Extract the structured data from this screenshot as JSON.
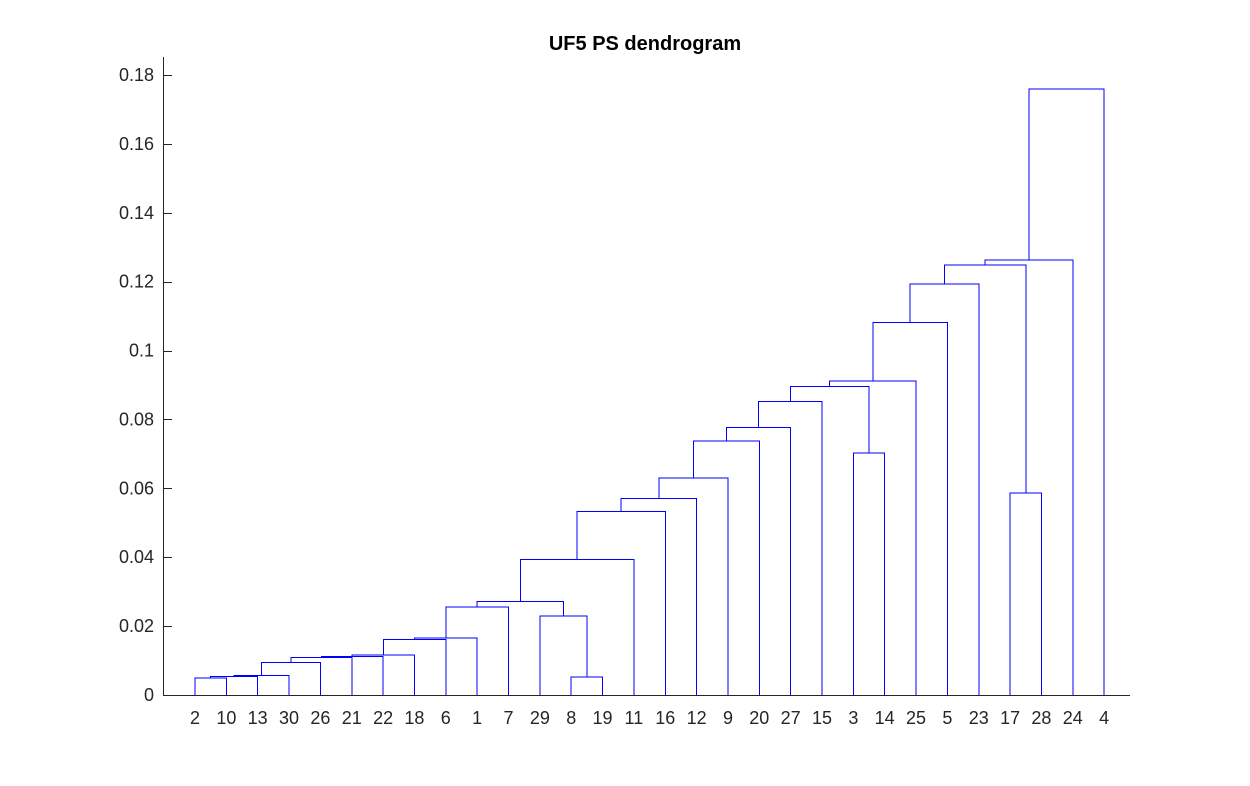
{
  "chart_data": {
    "type": "dendrogram",
    "title": "UF5 PS dendrogram",
    "xlabel": "",
    "ylabel": "",
    "ylim": [
      0,
      0.18
    ],
    "yticks": [
      0,
      0.02,
      0.04,
      0.06,
      0.08,
      0.1,
      0.12,
      0.14,
      0.16,
      0.18
    ],
    "ytick_labels": [
      "0",
      "0.02",
      "0.04",
      "0.06",
      "0.08",
      "0.1",
      "0.12",
      "0.14",
      "0.16",
      "0.18"
    ],
    "leaf_order": [
      "2",
      "10",
      "13",
      "30",
      "26",
      "21",
      "22",
      "18",
      "6",
      "1",
      "7",
      "29",
      "8",
      "19",
      "11",
      "16",
      "12",
      "9",
      "20",
      "27",
      "15",
      "3",
      "14",
      "25",
      "5",
      "23",
      "17",
      "28",
      "24",
      "4"
    ],
    "merges": [
      {
        "left": "2",
        "right": "10",
        "height": 0.0049
      },
      {
        "left": "8",
        "right": "19",
        "height": 0.0052
      },
      {
        "left": "c1",
        "right": "13",
        "height": 0.0054
      },
      {
        "left": "c3",
        "right": "30",
        "height": 0.0056
      },
      {
        "left": "c4",
        "right": "26",
        "height": 0.0094
      },
      {
        "left": "c5",
        "right": "21",
        "height": 0.0109
      },
      {
        "left": "c6",
        "right": "22",
        "height": 0.0112
      },
      {
        "left": "c7",
        "right": "18",
        "height": 0.0116
      },
      {
        "left": "c8",
        "right": "6",
        "height": 0.0161
      },
      {
        "left": "c9",
        "right": "1",
        "height": 0.0166
      },
      {
        "left": "29",
        "right": "c2",
        "height": 0.0229
      },
      {
        "left": "c10",
        "right": "7",
        "height": 0.0256
      },
      {
        "left": "c12",
        "right": "c11",
        "height": 0.0272
      },
      {
        "left": "c13",
        "right": "11",
        "height": 0.0393
      },
      {
        "left": "c14",
        "right": "16",
        "height": 0.0533
      },
      {
        "left": "c15",
        "right": "12",
        "height": 0.0571
      },
      {
        "left": "c16",
        "right": "9",
        "height": 0.063
      },
      {
        "left": "c17",
        "right": "20",
        "height": 0.0738
      },
      {
        "left": "3",
        "right": "14",
        "height": 0.0703
      },
      {
        "left": "c18",
        "right": "27",
        "height": 0.0777
      },
      {
        "left": "c20",
        "right": "15",
        "height": 0.0852
      },
      {
        "left": "c21",
        "right": "c19",
        "height": 0.0895
      },
      {
        "left": "c22",
        "right": "25",
        "height": 0.0912
      },
      {
        "left": "c23",
        "right": "5",
        "height": 0.1082
      },
      {
        "left": "c24",
        "right": "23",
        "height": 0.1193
      },
      {
        "left": "17",
        "right": "28",
        "height": 0.0586
      },
      {
        "left": "c25",
        "right": "c26",
        "height": 0.1248
      },
      {
        "left": "c27",
        "right": "24",
        "height": 0.1263
      },
      {
        "left": "c28",
        "right": "4",
        "height": 0.1759
      }
    ],
    "colors": {
      "links": "#0000ff",
      "axis": "#262626",
      "background": "#ffffff"
    }
  }
}
